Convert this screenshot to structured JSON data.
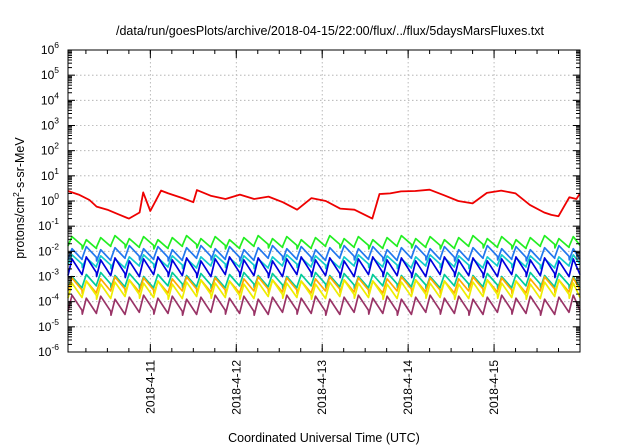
{
  "chart_data": {
    "type": "line",
    "title": "/data/run/goesPlots/archive/2018-04-15/22:00/flux/../flux/5daysMarsFluxes.txt",
    "xlabel": "Coordinated Universal Time (UTC)",
    "ylabel": "protons/cm²-s-sr-MeV",
    "ylabel_parts": {
      "a": "protons/cm",
      "sup": "2",
      "b": "-s-sr-MeV"
    },
    "yscale": "log",
    "ylim": [
      1e-06,
      1000000.0
    ],
    "yticks": [
      {
        "base": "10",
        "exp": "-6"
      },
      {
        "base": "10",
        "exp": "-5"
      },
      {
        "base": "10",
        "exp": "-4"
      },
      {
        "base": "10",
        "exp": "-3"
      },
      {
        "base": "10",
        "exp": "-2"
      },
      {
        "base": "10",
        "exp": "-1"
      },
      {
        "base": "10",
        "exp": "0"
      },
      {
        "base": "10",
        "exp": "1"
      },
      {
        "base": "10",
        "exp": "2"
      },
      {
        "base": "10",
        "exp": "3"
      },
      {
        "base": "10",
        "exp": "4"
      },
      {
        "base": "10",
        "exp": "5"
      },
      {
        "base": "10",
        "exp": "6"
      }
    ],
    "xlim": [
      "2018-04-10T01:00",
      "2018-04-16T00:00"
    ],
    "xticks": [
      {
        "label": "2018-4-11",
        "at": "2018-04-11T00:00"
      },
      {
        "label": "2018-4-12",
        "at": "2018-04-12T00:00"
      },
      {
        "label": "2018-4-13",
        "at": "2018-04-13T00:00"
      },
      {
        "label": "2018-4-14",
        "at": "2018-04-14T00:00"
      },
      {
        "label": "2018-4-15",
        "at": "2018-04-15T00:00"
      }
    ],
    "grid": true,
    "series": [
      {
        "color": "#ee0000",
        "x": [
          "2018-04-10T01:00",
          "2018-04-10T04:00",
          "2018-04-10T07:00",
          "2018-04-10T09:00",
          "2018-04-10T12:00",
          "2018-04-10T15:00",
          "2018-04-10T18:00",
          "2018-04-10T21:00",
          "2018-04-10T22:00",
          "2018-04-11T00:00",
          "2018-04-11T03:00",
          "2018-04-11T05:00",
          "2018-04-11T09:00",
          "2018-04-11T12:00",
          "2018-04-11T13:00",
          "2018-04-11T17:00",
          "2018-04-11T21:00",
          "2018-04-12T01:00",
          "2018-04-12T05:00",
          "2018-04-12T09:00",
          "2018-04-12T13:00",
          "2018-04-12T17:00",
          "2018-04-12T21:00",
          "2018-04-13T01:00",
          "2018-04-13T05:00",
          "2018-04-13T09:00",
          "2018-04-13T14:00",
          "2018-04-13T16:00",
          "2018-04-13T19:00",
          "2018-04-13T22:00",
          "2018-04-14T02:00",
          "2018-04-14T06:00",
          "2018-04-14T10:00",
          "2018-04-14T14:00",
          "2018-04-14T18:00",
          "2018-04-14T22:00",
          "2018-04-15T02:00",
          "2018-04-15T06:00",
          "2018-04-15T10:00",
          "2018-04-15T14:00",
          "2018-04-15T16:00",
          "2018-04-15T18:00",
          "2018-04-15T21:00",
          "2018-04-15T23:00",
          "2018-04-16T00:00"
        ],
        "y": [
          2.5,
          1.8,
          1.1,
          0.6,
          0.45,
          0.3,
          0.2,
          0.35,
          2.2,
          0.4,
          2.6,
          2.0,
          1.3,
          0.9,
          2.7,
          1.6,
          1.2,
          1.8,
          1.2,
          1.5,
          0.9,
          0.45,
          1.3,
          1.0,
          0.5,
          0.45,
          0.2,
          1.9,
          2.0,
          2.4,
          2.5,
          2.8,
          1.7,
          1.0,
          0.8,
          2.1,
          2.6,
          2.0,
          0.7,
          0.35,
          0.28,
          0.25,
          1.4,
          1.2,
          2.0
        ]
      },
      {
        "color": "#22ee22",
        "period_hours": 4,
        "peak": 0.035,
        "trough": 0.015
      },
      {
        "color": "#2277ee",
        "period_hours": 4,
        "peak": 0.014,
        "trough": 0.005
      },
      {
        "color": "#11cccc",
        "period_hours": 4,
        "peak": 0.006,
        "trough": 0.0025
      },
      {
        "color": "#0000dd",
        "period_hours": 4,
        "peak": 0.005,
        "trough": 0.0011
      },
      {
        "color": "#00cc99",
        "period_hours": 4,
        "peak": 0.0012,
        "trough": 0.0004
      },
      {
        "color": "#ffaa00",
        "period_hours": 4,
        "peak": 0.0008,
        "trough": 0.00025
      },
      {
        "color": "#eeee00",
        "period_hours": 4,
        "peak": 0.0006,
        "trough": 0.00015
      },
      {
        "color": "#993366",
        "period_hours": 4,
        "peak": 0.00015,
        "trough": 3.5e-05
      }
    ]
  }
}
